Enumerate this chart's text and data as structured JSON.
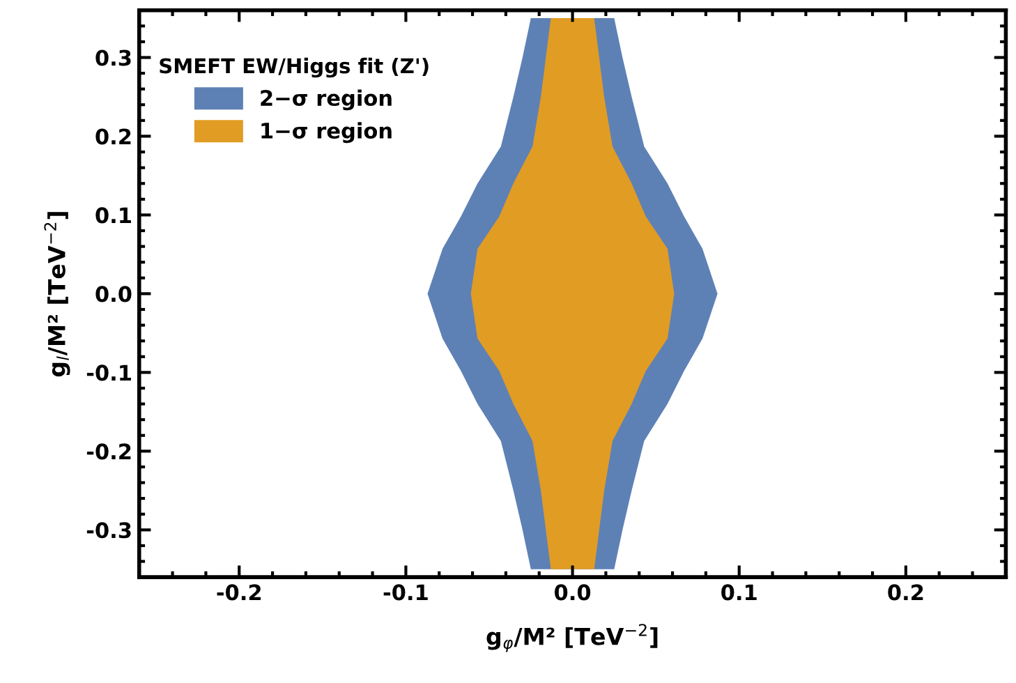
{
  "chart_data": {
    "type": "area",
    "xlabel": "g$_{φ}$/M² [TeV$^{−2}$]",
    "ylabel": "g$_{l}$/M² [TeV$^{−2}$]",
    "legend_title": "SMEFT EW/Higgs fit (Z')",
    "legend": "top left",
    "grid": false,
    "xlim": [
      -0.26,
      0.26
    ],
    "ylim": [
      -0.36,
      0.36
    ],
    "xticks": [
      -0.2,
      -0.1,
      {
        "value": 0,
        "label": "0.0"
      },
      0.1,
      0.2
    ],
    "yticks": [
      -0.3,
      -0.2,
      -0.1,
      {
        "value": 0,
        "label": "0.0"
      },
      0.1,
      0.2,
      0.3
    ],
    "series": [
      {
        "name": "2−σ region",
        "color": "#5e81b5",
        "x": [
          0.025,
          0.03,
          0.0355,
          0.043,
          0.057,
          0.067,
          0.078,
          0.087,
          0.078,
          0.067,
          0.057,
          0.043,
          0.0355,
          0.03,
          0.025,
          -0.025,
          -0.03,
          -0.0355,
          -0.043,
          -0.057,
          -0.067,
          -0.078,
          -0.087,
          -0.078,
          -0.067,
          -0.057,
          -0.043,
          -0.0355,
          -0.03,
          -0.025
        ],
        "values": [
          0.35,
          0.3,
          0.25,
          0.187,
          0.14,
          0.098,
          0.057,
          0,
          -0.057,
          -0.098,
          -0.14,
          -0.187,
          -0.25,
          -0.3,
          -0.35,
          -0.35,
          -0.3,
          -0.25,
          -0.187,
          -0.14,
          -0.098,
          -0.057,
          0,
          0.057,
          0.098,
          0.14,
          0.187,
          0.25,
          0.3,
          0.35
        ]
      },
      {
        "name": "1−σ region",
        "color": "#e19c24",
        "x": [
          0.013,
          0.016,
          0.019,
          0.024,
          0.0355,
          0.044,
          0.057,
          0.061,
          0.057,
          0.044,
          0.0355,
          0.024,
          0.019,
          0.016,
          0.013,
          -0.013,
          -0.016,
          -0.019,
          -0.024,
          -0.0355,
          -0.044,
          -0.057,
          -0.061,
          -0.057,
          -0.044,
          -0.0355,
          -0.024,
          -0.019,
          -0.016,
          -0.013
        ],
        "values": [
          0.35,
          0.3,
          0.25,
          0.187,
          0.14,
          0.098,
          0.057,
          0,
          -0.057,
          -0.098,
          -0.14,
          -0.187,
          -0.25,
          -0.3,
          -0.35,
          -0.35,
          -0.3,
          -0.25,
          -0.187,
          -0.14,
          -0.098,
          -0.057,
          0,
          0.057,
          0.098,
          0.14,
          0.187,
          0.25,
          0.3,
          0.35
        ]
      }
    ]
  }
}
